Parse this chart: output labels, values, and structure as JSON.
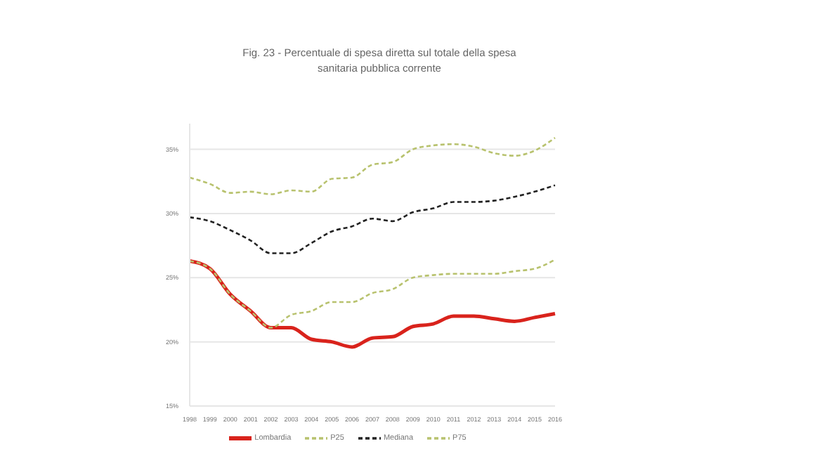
{
  "chart_data": {
    "type": "line",
    "title": "Fig. 23 - Percentuale di spesa diretta sul totale della spesa\nsanitaria pubblica corrente",
    "categories": [
      "1998",
      "1999",
      "2000",
      "2001",
      "2002",
      "2003",
      "2004",
      "2005",
      "2006",
      "2007",
      "2008",
      "2009",
      "2010",
      "2011",
      "2012",
      "2013",
      "2014",
      "2015",
      "2016"
    ],
    "series": [
      {
        "name": "Lombardia",
        "color": "#d9231c",
        "line_style": "solid",
        "values": [
          26.3,
          25.7,
          23.7,
          22.4,
          21.1,
          21.1,
          20.2,
          20.0,
          19.6,
          20.3,
          20.4,
          21.2,
          21.4,
          22.0,
          22.0,
          21.8,
          21.6,
          21.9,
          22.2
        ]
      },
      {
        "name": "P25",
        "color": "#b8c26e",
        "line_style": "dashed",
        "values": [
          26.3,
          25.7,
          23.7,
          22.4,
          21.1,
          22.1,
          22.4,
          23.1,
          23.1,
          23.8,
          24.1,
          25.0,
          25.2,
          25.3,
          25.3,
          25.3,
          25.5,
          25.7,
          26.4
        ]
      },
      {
        "name": "Mediana",
        "color": "#222222",
        "line_style": "dashed",
        "values": [
          29.7,
          29.4,
          28.7,
          27.9,
          26.9,
          26.9,
          27.7,
          28.6,
          29.0,
          29.6,
          29.4,
          30.1,
          30.4,
          30.9,
          30.9,
          31.0,
          31.3,
          31.7,
          32.2
        ]
      },
      {
        "name": "P75",
        "color": "#b8c26e",
        "line_style": "dashed",
        "values": [
          32.8,
          32.3,
          31.6,
          31.7,
          31.5,
          31.8,
          31.7,
          32.7,
          32.8,
          33.8,
          34.0,
          35.0,
          35.3,
          35.4,
          35.2,
          34.7,
          34.5,
          34.9,
          35.9
        ]
      }
    ],
    "ylim": [
      15,
      37
    ],
    "yticks": [
      {
        "value": 15,
        "label": "15%"
      },
      {
        "value": 20,
        "label": "20%"
      },
      {
        "value": 25,
        "label": "25%"
      },
      {
        "value": 30,
        "label": "30%"
      },
      {
        "value": 35,
        "label": "35%"
      }
    ],
    "grid": "y",
    "legend": "bottom",
    "marker": "none"
  }
}
